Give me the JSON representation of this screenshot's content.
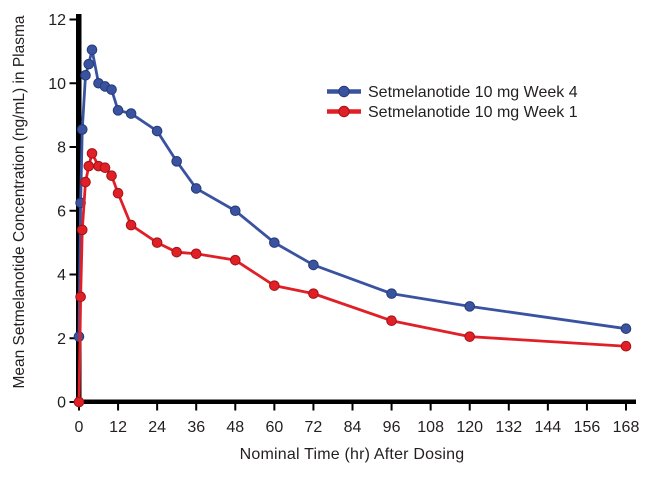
{
  "figure": {
    "background": "#ffffff",
    "text_color": "#231f20",
    "axis_color": "#000000"
  },
  "chart_data": {
    "type": "line",
    "title": "",
    "xlabel": "Nominal Time (hr) After Dosing",
    "ylabel": "Mean Setmelanotide Concentration (ng/mL) in Plasma",
    "x": [
      0,
      0.5,
      1,
      2,
      3,
      4,
      6,
      8,
      10,
      12,
      16,
      24,
      30,
      36,
      48,
      60,
      72,
      96,
      120,
      168
    ],
    "series": [
      {
        "name": "Setmelanotide 10 mg Week 4",
        "color": "#3a53a0",
        "marker_edge": "#263a78",
        "values": [
          2.05,
          6.25,
          8.55,
          10.25,
          10.6,
          11.05,
          10.0,
          9.9,
          9.8,
          9.15,
          9.05,
          8.5,
          7.55,
          6.7,
          6.0,
          5.0,
          4.3,
          3.4,
          3.0,
          2.3
        ]
      },
      {
        "name": "Setmelanotide 10 mg Week 1",
        "color": "#e01f26",
        "marker_edge": "#a31318",
        "values": [
          0,
          3.3,
          5.4,
          6.9,
          7.4,
          7.8,
          7.4,
          7.35,
          7.1,
          6.55,
          5.55,
          5.0,
          4.7,
          4.65,
          4.45,
          3.65,
          3.4,
          2.55,
          2.05,
          1.75
        ]
      }
    ],
    "xlim": [
      0,
      168
    ],
    "ylim": [
      0,
      12
    ],
    "xticks": [
      0,
      12,
      24,
      36,
      48,
      60,
      72,
      84,
      96,
      108,
      120,
      132,
      144,
      156,
      168
    ],
    "yticks": [
      0,
      2,
      4,
      6,
      8,
      10,
      12
    ],
    "grid": false,
    "legend_position": "upper-right-inside"
  }
}
